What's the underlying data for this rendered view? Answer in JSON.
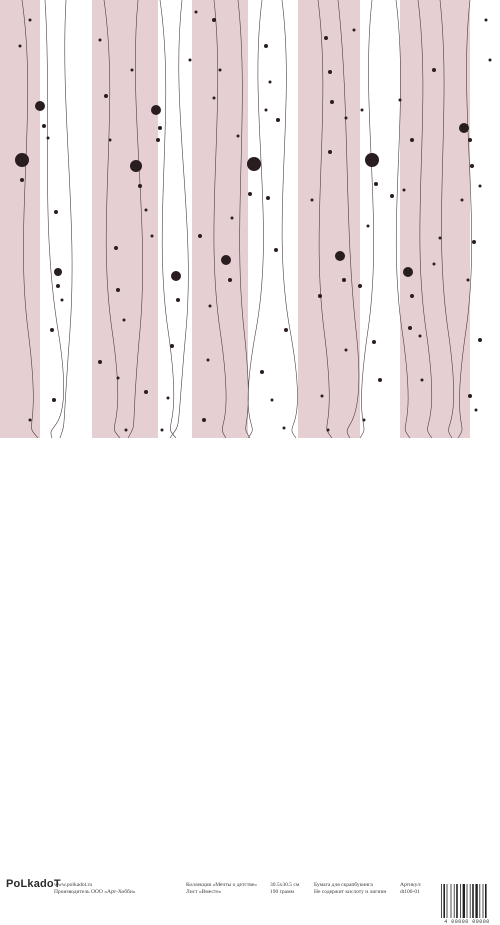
{
  "brand": "PoLkadoT",
  "footer": {
    "site": "www.polkadot.ru",
    "manufacturer": "Производитель ООО «Арт-Хобби»",
    "collection": "Коллекция «Мечты о детстве»",
    "sheet": "Лист «Вместе»",
    "size": "30.5х30.5 см",
    "weight": "190 грамм",
    "paper_type": "Бумага для скрапбукинга",
    "acid_free": "Не содержит кислоту и лигнин",
    "article_label": "Артикул:",
    "article": "dt100-01",
    "barcode_number": "4 00000 00000"
  },
  "colors": {
    "stripe": "#e5cfd2",
    "background": "#ffffff",
    "dot": "#2a1d20",
    "line": "#4a3b3e"
  },
  "icons": [
    "logo-icon",
    "barcode-icon"
  ]
}
